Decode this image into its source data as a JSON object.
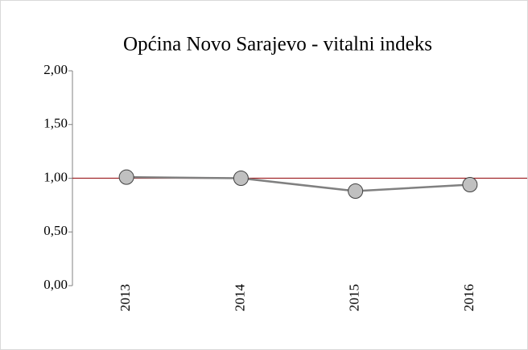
{
  "chart_data": {
    "type": "line",
    "title": "Općina Novo Sarajevo - vitalni indeks",
    "categories": [
      "2013",
      "2014",
      "2015",
      "2016"
    ],
    "series": [
      {
        "name": "vitalni indeks",
        "color": "#808080",
        "values": [
          1.01,
          1.0,
          0.88,
          0.94
        ]
      }
    ],
    "ylim": [
      0,
      2
    ],
    "yticks": [
      {
        "value": 0,
        "label": "0,00"
      },
      {
        "value": 0.5,
        "label": "0,50"
      },
      {
        "value": 1,
        "label": "1,00"
      },
      {
        "value": 1.5,
        "label": "1,50"
      },
      {
        "value": 2,
        "label": "2,00"
      }
    ],
    "hline": 1,
    "hline_color": "#a0262a",
    "marker_color": "#c0c0c0"
  }
}
